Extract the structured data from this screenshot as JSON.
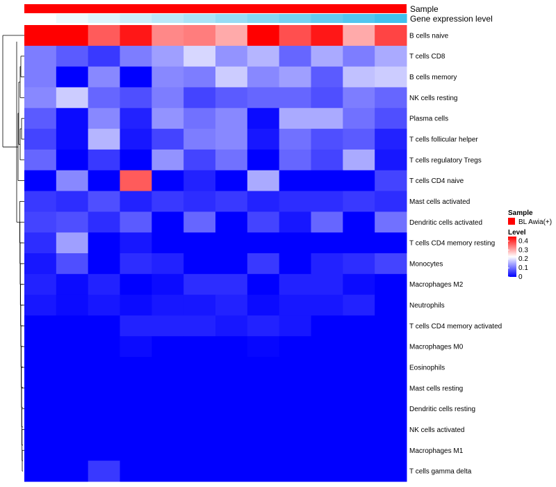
{
  "chart_data": {
    "type": "heatmap",
    "annotation_labels": {
      "sample": "Sample",
      "gene_expression": "Gene expression level"
    },
    "legend": {
      "sample_title": "Sample",
      "sample_entry": "BL Awia(+)",
      "sample_color": "#ff0000",
      "level_title": "Level",
      "level_ticks": [
        "0.4",
        "0.3",
        "0.2",
        "0.1",
        "0"
      ],
      "level_min": 0,
      "level_max": 0.45
    },
    "colors": {
      "low": "#0000ff",
      "mid": "#ffffff",
      "high": "#ff0000",
      "expr_low": "#ffffff",
      "expr_high": "#41c0ed"
    },
    "columns": 12,
    "gene_expression": [
      0.0,
      0.09,
      0.18,
      0.27,
      0.36,
      0.45,
      0.55,
      0.64,
      0.73,
      0.82,
      0.91,
      1.0
    ],
    "row_labels": [
      "B cells naive",
      "T cells CD8",
      "B cells memory",
      "NK cells resting",
      "Plasma cells",
      "T cells follicular helper",
      "T cells regulatory  Tregs",
      "T cells CD4 naive",
      "Mast cells activated",
      "Dendritic cells activated",
      "T cells CD4 memory resting",
      "Monocytes",
      "Macrophages M2",
      "Neutrophils",
      "T cells CD4 memory activated",
      "Macrophages M0",
      "Eosinophils",
      "Mast cells resting",
      "Dendritic cells resting",
      "NK cells activated",
      "Macrophages M1",
      "T cells gamma delta"
    ],
    "values": [
      [
        0.45,
        0.45,
        0.37,
        0.43,
        0.33,
        0.34,
        0.3,
        0.45,
        0.38,
        0.43,
        0.3,
        0.39
      ],
      [
        0.11,
        0.08,
        0.05,
        0.11,
        0.14,
        0.19,
        0.13,
        0.16,
        0.09,
        0.15,
        0.11,
        0.15
      ],
      [
        0.11,
        0.0,
        0.12,
        0.0,
        0.12,
        0.11,
        0.18,
        0.12,
        0.14,
        0.08,
        0.17,
        0.18
      ],
      [
        0.12,
        0.18,
        0.09,
        0.07,
        0.11,
        0.06,
        0.08,
        0.09,
        0.09,
        0.07,
        0.11,
        0.09
      ],
      [
        0.08,
        0.01,
        0.12,
        0.03,
        0.13,
        0.1,
        0.12,
        0.01,
        0.15,
        0.15,
        0.1,
        0.07
      ],
      [
        0.06,
        0.01,
        0.16,
        0.02,
        0.06,
        0.11,
        0.12,
        0.02,
        0.1,
        0.07,
        0.08,
        0.03
      ],
      [
        0.09,
        0.0,
        0.05,
        0.0,
        0.13,
        0.06,
        0.1,
        0.0,
        0.09,
        0.06,
        0.15,
        0.02
      ],
      [
        0.0,
        0.12,
        0.0,
        0.37,
        0.0,
        0.03,
        0.0,
        0.15,
        0.0,
        0.0,
        0.0,
        0.06
      ],
      [
        0.05,
        0.04,
        0.07,
        0.03,
        0.05,
        0.04,
        0.05,
        0.03,
        0.04,
        0.04,
        0.05,
        0.04
      ],
      [
        0.06,
        0.07,
        0.04,
        0.08,
        0.0,
        0.09,
        0.0,
        0.06,
        0.02,
        0.09,
        0.0,
        0.1
      ],
      [
        0.04,
        0.14,
        0.0,
        0.02,
        0.0,
        0.0,
        0.0,
        0.0,
        0.0,
        0.0,
        0.0,
        0.0
      ],
      [
        0.02,
        0.07,
        0.0,
        0.04,
        0.03,
        0.0,
        0.0,
        0.05,
        0.0,
        0.03,
        0.04,
        0.06
      ],
      [
        0.03,
        0.01,
        0.03,
        0.0,
        0.01,
        0.04,
        0.04,
        0.0,
        0.03,
        0.03,
        0.01,
        0.0
      ],
      [
        0.02,
        0.01,
        0.02,
        0.01,
        0.02,
        0.02,
        0.03,
        0.01,
        0.02,
        0.02,
        0.03,
        0.0
      ],
      [
        0.0,
        0.0,
        0.0,
        0.03,
        0.03,
        0.03,
        0.02,
        0.03,
        0.02,
        0.0,
        0.0,
        0.0
      ],
      [
        0.0,
        0.0,
        0.0,
        0.01,
        0.0,
        0.0,
        0.0,
        0.005,
        0.0,
        0.0,
        0.0,
        0.0
      ],
      [
        0.0,
        0.0,
        0.0,
        0.0,
        0.0,
        0.0,
        0.0,
        0.0,
        0.0,
        0.0,
        0.0,
        0.0
      ],
      [
        0.0,
        0.0,
        0.0,
        0.0,
        0.0,
        0.0,
        0.0,
        0.0,
        0.0,
        0.0,
        0.0,
        0.0
      ],
      [
        0.0,
        0.0,
        0.0,
        0.0,
        0.0,
        0.0,
        0.0,
        0.0,
        0.0,
        0.0,
        0.0,
        0.0
      ],
      [
        0.0,
        0.0,
        0.0,
        0.0,
        0.0,
        0.0,
        0.0,
        0.0,
        0.0,
        0.0,
        0.0,
        0.0
      ],
      [
        0.0,
        0.0,
        0.0,
        0.0,
        0.0,
        0.0,
        0.0,
        0.0,
        0.0,
        0.0,
        0.0,
        0.0
      ],
      [
        0.0,
        0.0,
        0.05,
        0.0,
        0.0,
        0.0,
        0.0,
        0.0,
        0.0,
        0.0,
        0.0,
        0.0
      ]
    ]
  }
}
